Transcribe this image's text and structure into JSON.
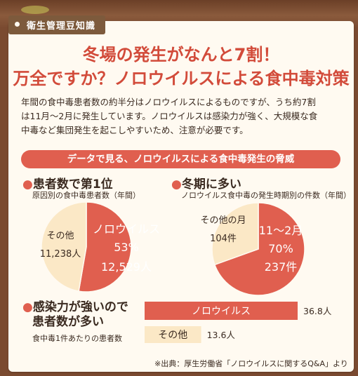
{
  "tag": "衛生管理豆知識",
  "headline": {
    "line1": "冬場の発生がなんと7割！",
    "line2": "万全ですか？ノロウイルスによる食中毒対策"
  },
  "intro": [
    "年間の食中毒患者数の約半分はノロウイルスによるものですが、うち約7割",
    "は11月〜2月に発生しています。ノロウイルスは感染力が強く、大規模な食",
    "中毒など集団発生を起こしやすいため、注意が必要です。"
  ],
  "banner": "データで見る、ノロウイルスによる食中毒発生の脅威",
  "sections": {
    "patients": {
      "title": "患者数で第1位",
      "subtitle": "原因別の食中毒患者数（年間）"
    },
    "winter": {
      "title": "冬期に多い",
      "subtitle": "ノロウイルス食中毒の発生時期別の件数（年間）"
    },
    "infectious": {
      "title_line1": "感染力が強いので",
      "title_line2": "患者数が多い",
      "subtitle": "食中毒1件あたりの患者数"
    }
  },
  "colors": {
    "accent": "#e05f4f",
    "cream": "#fbe8c6",
    "headline": "#d24b3a"
  },
  "chart_data": [
    {
      "type": "pie",
      "title": "患者数で第1位",
      "subtitle": "原因別の食中毒患者数（年間）",
      "slices": [
        {
          "label": "ノロウイルス",
          "value": 12529,
          "value_label": "12,529人",
          "percent_label": "53%",
          "color": "#e05f4f"
        },
        {
          "label": "その他",
          "value": 11238,
          "value_label": "11,238人",
          "color": "#fbe8c6"
        }
      ]
    },
    {
      "type": "pie",
      "title": "冬期に多い",
      "subtitle": "ノロウイルス食中毒の発生時期別の件数（年間）",
      "slices": [
        {
          "label": "11〜2月",
          "value": 237,
          "value_label": "237件",
          "percent_label": "70%",
          "color": "#e05f4f"
        },
        {
          "label": "その他の月",
          "value": 104,
          "value_label": "104件",
          "color": "#fbe8c6"
        }
      ]
    },
    {
      "type": "bar",
      "orientation": "horizontal",
      "title": "感染力が強いので患者数が多い",
      "subtitle": "食中毒1件あたりの患者数",
      "categories": [
        "ノロウイルス",
        "その他"
      ],
      "values": [
        36.8,
        13.6
      ],
      "value_labels": [
        "36.8人",
        "13.6人"
      ],
      "colors": [
        "#e05f4f",
        "#fbe8c6"
      ]
    }
  ],
  "source": "※出典：厚生労働省「ノロウイルスに関するQ&A」より"
}
